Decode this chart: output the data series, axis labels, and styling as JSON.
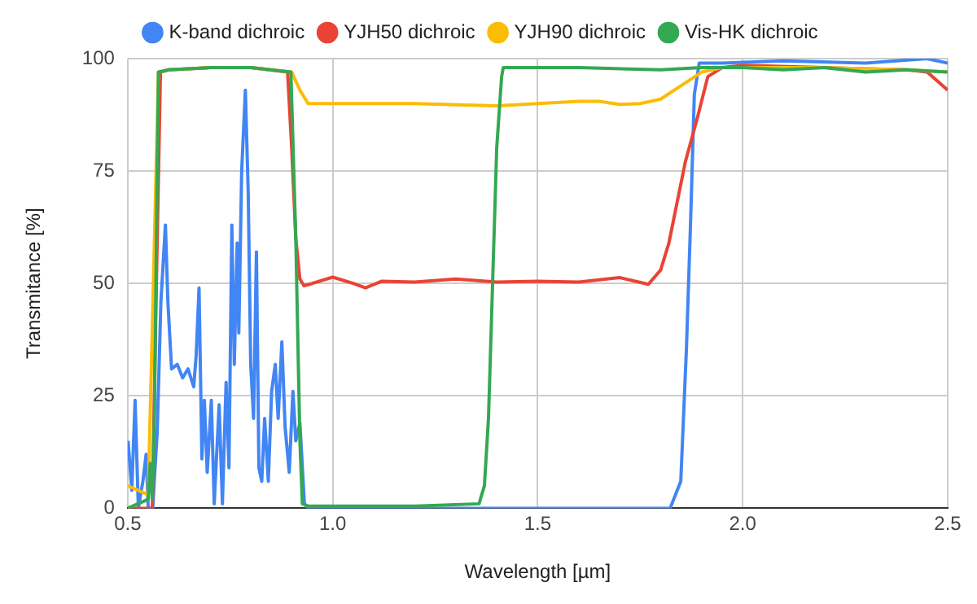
{
  "chart_data": {
    "type": "line",
    "xlabel": "Wavelength [µm]",
    "ylabel": "Transmitance [%]",
    "xlim": [
      0.5,
      2.5
    ],
    "xticks": [
      0.5,
      {
        "value": 1,
        "label": "1.0"
      },
      1.5,
      {
        "value": 2,
        "label": "2.0"
      },
      2.5
    ],
    "ylim": [
      0,
      100
    ],
    "yticks": [
      0,
      25,
      50,
      75,
      100
    ],
    "grid": true,
    "legend": "top",
    "marker": "none",
    "line_style": "solid",
    "series": [
      {
        "name": "K-band dichroic",
        "color": "#4285f4",
        "x": [
          0.501,
          0.51,
          0.518,
          0.526,
          0.537,
          0.545,
          0.55,
          0.561,
          0.572,
          0.581,
          0.592,
          0.598,
          0.607,
          0.621,
          0.634,
          0.647,
          0.661,
          0.667,
          0.674,
          0.681,
          0.687,
          0.694,
          0.704,
          0.711,
          0.723,
          0.731,
          0.74,
          0.747,
          0.754,
          0.76,
          0.767,
          0.771,
          0.778,
          0.787,
          0.794,
          0.8,
          0.807,
          0.814,
          0.82,
          0.827,
          0.834,
          0.843,
          0.851,
          0.86,
          0.867,
          0.876,
          0.884,
          0.894,
          0.903,
          0.91,
          0.92,
          0.931,
          0.94,
          1.2,
          1.5,
          1.823,
          1.849,
          1.863,
          1.873,
          1.882,
          1.894,
          1.95,
          2.1,
          2.3,
          2.45,
          2.5
        ],
        "values": [
          15,
          4,
          24,
          0,
          6,
          12,
          0,
          0,
          17,
          46,
          63,
          46,
          31,
          32,
          29,
          31,
          27,
          34,
          49,
          11,
          24,
          8,
          24,
          1,
          23,
          1,
          28,
          9,
          63,
          32,
          59,
          39,
          75,
          93,
          70,
          32,
          20,
          57,
          9,
          6,
          20,
          6,
          26,
          32,
          20,
          37,
          18,
          8,
          26,
          15,
          19,
          1,
          0,
          0,
          0,
          0,
          6,
          36,
          64,
          92,
          99,
          99,
          99.5,
          99,
          100,
          99
        ]
      },
      {
        "name": "YJH50 dichroic",
        "color": "#ea4335",
        "x": [
          0.5,
          0.56,
          0.57,
          0.58,
          0.6,
          0.7,
          0.8,
          0.89,
          0.9,
          0.91,
          0.92,
          0.93,
          0.95,
          1,
          1.05,
          1.08,
          1.12,
          1.2,
          1.3,
          1.4,
          1.5,
          1.6,
          1.7,
          1.77,
          1.8,
          1.82,
          1.86,
          1.89,
          1.915,
          1.95,
          2,
          2.2,
          2.4,
          2.45,
          2.5
        ],
        "values": [
          0,
          0,
          50,
          97,
          97.5,
          98,
          98,
          97,
          80,
          60,
          51,
          49.5,
          50,
          51.4,
          50,
          49,
          50.5,
          50.3,
          51,
          50.3,
          50.5,
          50.3,
          51.3,
          49.8,
          53,
          59,
          77,
          87,
          96,
          98,
          98.5,
          98,
          97.5,
          97,
          93
        ]
      },
      {
        "name": "YJH90 dichroic",
        "color": "#fbbc04",
        "x": [
          0.5,
          0.55,
          0.56,
          0.575,
          0.6,
          0.7,
          0.8,
          0.9,
          0.92,
          0.94,
          1,
          1.2,
          1.4,
          1.5,
          1.6,
          1.65,
          1.7,
          1.75,
          1.8,
          1.85,
          1.9,
          1.95,
          2,
          2.2,
          2.4,
          2.5
        ],
        "values": [
          5,
          3,
          40,
          97,
          97.5,
          98,
          98,
          97,
          93,
          90,
          90,
          90,
          89.5,
          90,
          90.5,
          90.5,
          89.8,
          90,
          91,
          94,
          97,
          98,
          98,
          98,
          97.5,
          97
        ]
      },
      {
        "name": "Vis-HK dichroic",
        "color": "#34a853",
        "x": [
          0.5,
          0.55,
          0.555,
          0.56,
          0.565,
          0.575,
          0.6,
          0.7,
          0.8,
          0.898,
          0.91,
          0.92,
          0.926,
          0.94,
          1,
          1.2,
          1.357,
          1.37,
          1.38,
          1.39,
          1.4,
          1.412,
          1.416,
          1.5,
          1.6,
          1.8,
          1.9,
          2,
          2.1,
          2.2,
          2.3,
          2.4,
          2.5
        ],
        "values": [
          0,
          2,
          10,
          2,
          20,
          97,
          97.5,
          98,
          98,
          97,
          60,
          15,
          1,
          0.5,
          0.5,
          0.5,
          1,
          5,
          20,
          50,
          80,
          96,
          98,
          98,
          98,
          97.5,
          98,
          98,
          97.5,
          98,
          97,
          97.5,
          97
        ]
      }
    ]
  }
}
